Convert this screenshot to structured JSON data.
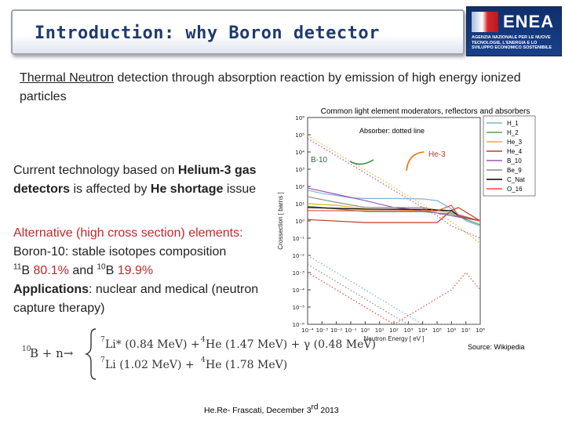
{
  "header": {
    "title": "Introduction: why Boron detector",
    "logo": {
      "name": "ENEA",
      "subtitle": "AGENZIA NAZIONALE PER LE NUOVE TECNOLOGIE, L'ENERGIA E LO SVILUPPO ECONOMICO SOSTENIBILE"
    }
  },
  "intro": {
    "p1": "Thermal Neutron",
    "p2": " detection through absorption reaction by emission of high energy ionized particles"
  },
  "current": {
    "t1": "Current technology based on ",
    "b1": "Helium-3 gas detectors",
    "t2": " is affected by ",
    "b2": "He shortage",
    "t3": " issue"
  },
  "alt": {
    "line1": "Alternative (high cross section) elements:",
    "line2_a": "Boron-10",
    "line2_b": ":  stable isotopes composition",
    "iso1_mass": "11",
    "iso1_rest": "B ",
    "iso1_pct": "80.1%",
    "and": " and ",
    "iso2_mass": "10",
    "iso2_rest": "B ",
    "iso2_pct": "19.9%",
    "app_label": "Applications",
    "app_text": ": nuclear and medical (neutron capture therapy)"
  },
  "chart_data": {
    "type": "line",
    "title": "Common light element moderators, reflectors and absorbers",
    "xlabel": "Neutron Energy [ eV ]",
    "ylabel": "Crossection [ barns ]",
    "xscale": "log",
    "yscale": "log",
    "xlim": [
      0.0001,
      100000000
    ],
    "ylim": [
      1e-06,
      1000000
    ],
    "x_ticks": [
      "10⁻⁴",
      "10⁻³",
      "10⁻²",
      "10⁻¹",
      "10⁰",
      "10¹",
      "10²",
      "10³",
      "10⁴",
      "10⁵",
      "10⁶",
      "10⁷",
      "10⁸"
    ],
    "y_ticks": [
      "10⁶",
      "10⁵",
      "10⁴",
      "10³",
      "10²",
      "10¹",
      "10⁰",
      "10⁻¹",
      "10⁻²",
      "10⁻³",
      "10⁻⁴",
      "10⁻⁵",
      "10⁻⁶"
    ],
    "legend_position": "top-right",
    "annotations": {
      "absorber": "Absorber: dotted line",
      "b10": "B-10",
      "he3": "He-3"
    },
    "series": [
      {
        "name": "H_1",
        "color": "#7fb3d5",
        "style": "solid",
        "points": [
          [
            0.0001,
            60
          ],
          [
            0.001,
            40
          ],
          [
            0.01,
            30
          ],
          [
            0.1,
            22
          ],
          [
            1,
            20
          ],
          [
            100,
            20
          ],
          [
            10000,
            19
          ],
          [
            100000,
            15
          ],
          [
            1000000,
            5
          ],
          [
            10000000,
            1
          ],
          [
            100000000,
            0.5
          ]
        ]
      },
      {
        "name": "H_2",
        "color": "#5aa04a",
        "style": "solid",
        "points": [
          [
            0.0001,
            7
          ],
          [
            0.01,
            5
          ],
          [
            1,
            3.5
          ],
          [
            10000,
            3.4
          ],
          [
            1000000,
            2.5
          ],
          [
            100000000,
            0.6
          ]
        ]
      },
      {
        "name": "He_3",
        "color": "#e6b422",
        "style": "solid",
        "points": [
          [
            0.0001,
            10
          ],
          [
            0.01,
            8
          ],
          [
            1,
            5
          ],
          [
            100000,
            4
          ],
          [
            1000000,
            3
          ],
          [
            100000000,
            1
          ]
        ]
      },
      {
        "name": "He_4",
        "color": "#c0392b",
        "style": "solid",
        "points": [
          [
            0.0001,
            1.2
          ],
          [
            1,
            0.8
          ],
          [
            100000,
            0.8
          ],
          [
            1000000,
            4
          ],
          [
            3000000,
            6
          ],
          [
            100000000,
            1
          ]
        ]
      },
      {
        "name": "B_10",
        "color": "#9b59b6",
        "style": "solid",
        "points": [
          [
            0.0001,
            80
          ],
          [
            0.01,
            35
          ],
          [
            1,
            15
          ],
          [
            100,
            6
          ],
          [
            10000,
            4
          ],
          [
            1000000,
            2
          ],
          [
            100000000,
            1
          ]
        ]
      },
      {
        "name": "Be_9",
        "color": "#8c8c8c",
        "style": "solid",
        "points": [
          [
            0.0001,
            25
          ],
          [
            0.01,
            12
          ],
          [
            1,
            6
          ],
          [
            10000,
            6
          ],
          [
            1000000,
            3
          ],
          [
            100000000,
            1
          ]
        ]
      },
      {
        "name": "C_Nat",
        "color": "#000000",
        "style": "solid",
        "points": [
          [
            0.0001,
            6
          ],
          [
            1,
            4.8
          ],
          [
            10000,
            4.7
          ],
          [
            1000000,
            4
          ],
          [
            3000000,
            2
          ],
          [
            100000000,
            1
          ]
        ]
      },
      {
        "name": "O_16",
        "color": "#e74c3c",
        "style": "solid",
        "points": [
          [
            0.0001,
            4
          ],
          [
            1,
            3.8
          ],
          [
            100000,
            3.8
          ],
          [
            1000000,
            8
          ],
          [
            3000000,
            2
          ],
          [
            100000000,
            1
          ]
        ]
      },
      {
        "name": "B_10 (abs)",
        "color": "#9b59b6",
        "style": "dotted",
        "points": [
          [
            0.0001,
            60000
          ],
          [
            0.001,
            19000
          ],
          [
            0.01,
            6000
          ],
          [
            0.1,
            1900
          ],
          [
            1,
            600
          ],
          [
            100,
            60
          ],
          [
            10000,
            6
          ],
          [
            100000,
            2
          ],
          [
            1000000,
            0.5
          ],
          [
            100000000,
            0.1
          ]
        ]
      },
      {
        "name": "He_3 (abs)",
        "color": "#e6b422",
        "style": "dotted",
        "points": [
          [
            0.0001,
            90000
          ],
          [
            0.001,
            28000
          ],
          [
            0.01,
            9000
          ],
          [
            0.1,
            2800
          ],
          [
            1,
            900
          ],
          [
            100,
            90
          ],
          [
            10000,
            9
          ],
          [
            1000000,
            0.9
          ],
          [
            100000000,
            0.05
          ]
        ]
      },
      {
        "name": "H_1 (abs)",
        "color": "#7fb3d5",
        "style": "dotted",
        "points": [
          [
            0.0001,
            0.01
          ],
          [
            0.01,
            0.001
          ],
          [
            1,
            0.0001
          ],
          [
            100,
            1e-05
          ],
          [
            10000,
            1e-06
          ],
          [
            100000000,
            1e-06
          ]
        ]
      },
      {
        "name": "Be_9 (abs)",
        "color": "#8c8c8c",
        "style": "dotted",
        "points": [
          [
            0.0001,
            0.003
          ],
          [
            0.01,
            0.0003
          ],
          [
            1,
            3e-05
          ],
          [
            100,
            3e-06
          ],
          [
            1000,
            1e-06
          ]
        ]
      },
      {
        "name": "O_16 (abs)",
        "color": "#e74c3c",
        "style": "dotted",
        "points": [
          [
            0.0001,
            0.001
          ],
          [
            0.01,
            0.0001
          ],
          [
            1,
            1e-05
          ],
          [
            100,
            1e-06
          ],
          [
            1000000,
            0.0001
          ],
          [
            10000000,
            0.001
          ],
          [
            100000000,
            0.0001
          ]
        ]
      }
    ]
  },
  "source": "Source: Wikipedia",
  "equation": {
    "lhs_mass": "10",
    "lhs": "B + n→",
    "row1_mass1": "7",
    "row1_p1": "Li* (0.84 MeV)  +",
    "row1_mass2": "4",
    "row1_p2": "He (1.47 MeV) + γ (0.48 MeV)",
    "row2_mass1": "7",
    "row2_p1": "Li (1.02 MeV)  +",
    "row2_mass2": "4",
    "row2_p2": "He (1.78 MeV)"
  },
  "footer": {
    "text": "He.Re- Frascati, December 3",
    "sup": "rd",
    "year": " 2013"
  }
}
